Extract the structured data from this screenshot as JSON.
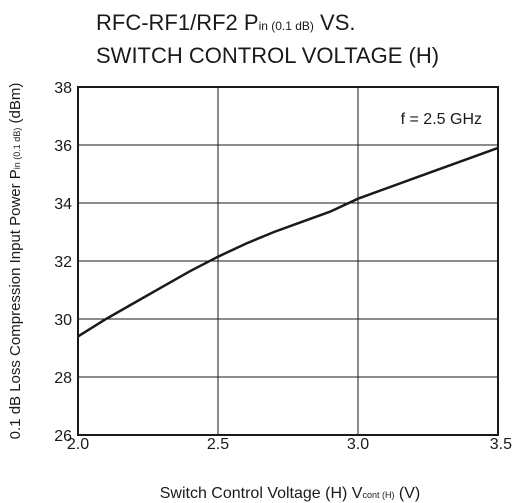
{
  "chart_data": {
    "type": "line",
    "title": {
      "line1_main": "RFC-RF1/RF2  P",
      "line1_sub": "in (0.1 dB)",
      "line1_end": " VS.",
      "line2": "SWITCH CONTROL VOLTAGE (H)"
    },
    "xlabel": {
      "main": "Switch Control Voltage (H)  V",
      "sub": "cont (H)",
      "end": " (V)"
    },
    "ylabel": {
      "main": "0.1 dB  Loss Compression Input Power  P",
      "sub": "in (0.1 dB)",
      "end": " (dBm)"
    },
    "annotation": "f = 2.5 GHz",
    "xlim": [
      2.0,
      3.5
    ],
    "ylim": [
      26,
      38
    ],
    "xticks": [
      "2.0",
      "2.5",
      "3.0",
      "3.5"
    ],
    "yticks": [
      "26",
      "28",
      "30",
      "32",
      "34",
      "36",
      "38"
    ],
    "grid": true,
    "series": [
      {
        "x": [
          2.0,
          2.1,
          2.2,
          2.3,
          2.4,
          2.5,
          2.6,
          2.7,
          2.8,
          2.9,
          3.0,
          3.1,
          3.2,
          3.3,
          3.4,
          3.5
        ],
        "y": [
          29.4,
          30.0,
          30.55,
          31.1,
          31.65,
          32.15,
          32.6,
          33.0,
          33.35,
          33.7,
          34.15,
          34.5,
          34.85,
          35.2,
          35.55,
          35.9
        ]
      }
    ]
  }
}
